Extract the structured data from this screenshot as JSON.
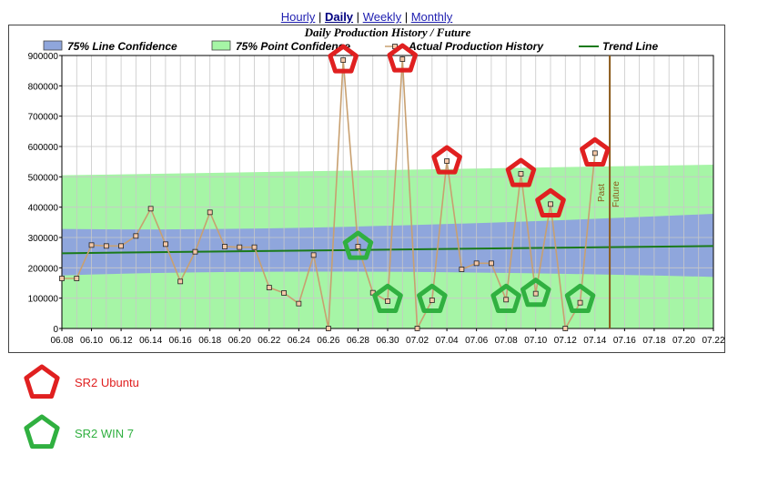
{
  "nav": {
    "links": [
      {
        "label": "Hourly",
        "active": false
      },
      {
        "label": "Daily",
        "active": true
      },
      {
        "label": "Weekly",
        "active": false
      },
      {
        "label": "Monthly",
        "active": false
      }
    ],
    "separator": "|"
  },
  "chart_data": {
    "type": "line",
    "title": "Daily Production History / Future",
    "legend": [
      {
        "label": "75% Line Confidence",
        "kind": "area",
        "color": "#8fa6dc"
      },
      {
        "label": "75% Point Confidence",
        "kind": "area",
        "color": "#a6f5a6"
      },
      {
        "label": "Actual Production History",
        "kind": "line-marker",
        "color": "#c8a070"
      },
      {
        "label": "Trend Line",
        "kind": "line",
        "color": "#1a7a1a"
      }
    ],
    "x_ticks": [
      "06.08",
      "06.10",
      "06.12",
      "06.14",
      "06.16",
      "06.18",
      "06.20",
      "06.22",
      "06.24",
      "06.26",
      "06.28",
      "06.30",
      "07.02",
      "07.04",
      "07.06",
      "07.08",
      "07.10",
      "07.12",
      "07.14",
      "07.16",
      "07.18",
      "07.20",
      "07.22"
    ],
    "y_ticks": [
      "0",
      "100000",
      "200000",
      "300000",
      "400000",
      "500000",
      "600000",
      "700000",
      "800000",
      "900000"
    ],
    "ylim": [
      0,
      900000
    ],
    "grid": true,
    "series": [
      {
        "name": "Actual Production History",
        "x": [
          "06.08",
          "06.09",
          "06.10",
          "06.11",
          "06.12",
          "06.13",
          "06.14",
          "06.15",
          "06.16",
          "06.17",
          "06.18",
          "06.19",
          "06.20",
          "06.21",
          "06.22",
          "06.23",
          "06.24",
          "06.25",
          "06.26",
          "06.27",
          "06.28",
          "06.29",
          "06.30",
          "07.01",
          "07.02",
          "07.03",
          "07.04",
          "07.05",
          "07.06",
          "07.07",
          "07.08",
          "07.09",
          "07.10",
          "07.11",
          "07.12",
          "07.13",
          "07.14"
        ],
        "values": [
          165000,
          165000,
          275000,
          272000,
          272000,
          305000,
          395000,
          278000,
          155000,
          253000,
          383000,
          270000,
          268000,
          268000,
          135000,
          117000,
          82000,
          242000,
          0,
          885000,
          270000,
          118000,
          90000,
          888000,
          0,
          93000,
          552000,
          195000,
          215000,
          215000,
          95000,
          510000,
          115000,
          410000,
          0,
          85000,
          578000
        ]
      },
      {
        "name": "Trend Line",
        "x_start": "06.08",
        "x_end": "07.22",
        "values": [
          248000,
          272000
        ]
      },
      {
        "name": "75% Line Confidence",
        "upper_start": 328000,
        "lower_start": 175000,
        "upper_end": 378000,
        "lower_end": 170000
      },
      {
        "name": "75% Point Confidence",
        "upper_start": 505000,
        "upper_end": 540000,
        "lower": 0
      }
    ],
    "past_future_divider": {
      "x": "07.15",
      "labels": [
        "Past",
        "Future"
      ],
      "color": "#8b5a1a"
    },
    "annotations": [
      {
        "type": "pentagon",
        "label": "SR2 Ubuntu",
        "color": "#e02020",
        "points": [
          "06.27",
          "07.01",
          "07.04",
          "07.09",
          "07.11",
          "07.14"
        ]
      },
      {
        "type": "pentagon",
        "label": "SR2 WIN 7",
        "color": "#30b040",
        "points": [
          "06.28",
          "06.30",
          "07.03",
          "07.08",
          "07.10",
          "07.13"
        ]
      }
    ]
  },
  "notes": [
    {
      "label": "SR2 Ubuntu",
      "color": "#e02020"
    },
    {
      "label": "SR2 WIN 7",
      "color": "#30b040"
    }
  ]
}
